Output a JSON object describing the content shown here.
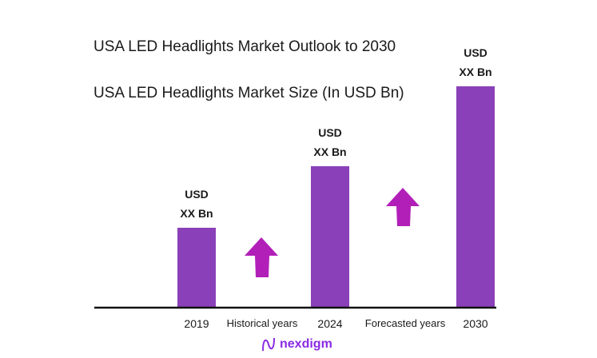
{
  "chart_data": {
    "type": "bar",
    "title": "USA LED Headlights Market Outlook to 2030",
    "subtitle": "USA LED Headlights Market Size (In USD Bn)",
    "categories": [
      "2019",
      "2024",
      "2030"
    ],
    "values": [
      1.0,
      1.77,
      2.77
    ],
    "value_note_labels": [
      "USD XX Bn",
      "USD XX Bn",
      "USD XX Bn"
    ],
    "data_labels": [
      {
        "line1": "USD",
        "line2": "XX Bn"
      },
      {
        "line1": "USD",
        "line2": "XX Bn"
      },
      {
        "line1": "USD",
        "line2": "XX Bn"
      }
    ],
    "period_labels": [
      "Historical years",
      "Forecasted years"
    ],
    "grid": false,
    "legend": "none",
    "colors": {
      "bar": "#8a40b8",
      "arrow": "#b21fb8",
      "axis": "#111111"
    }
  },
  "logo": {
    "text": "nexdigm"
  }
}
